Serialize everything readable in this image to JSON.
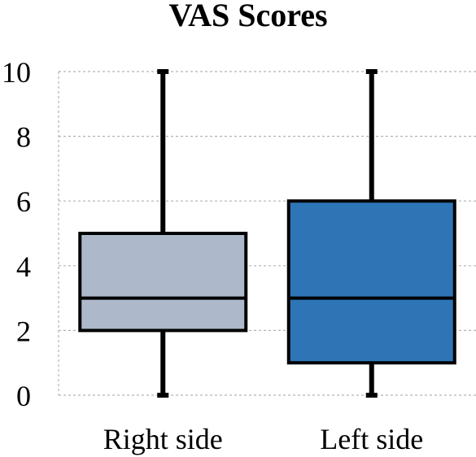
{
  "chart_data": {
    "type": "box",
    "title": "VAS Scores",
    "xlabel": "",
    "ylabel": "",
    "ylim": [
      0,
      10
    ],
    "yticks": [
      0,
      2,
      4,
      6,
      8,
      10
    ],
    "grid": true,
    "categories": [
      "Right side",
      "Left side"
    ],
    "boxes": [
      {
        "category": "Right side",
        "min": 0,
        "q1": 2,
        "median": 3,
        "q3": 5,
        "max": 10,
        "color": "#adb9ca"
      },
      {
        "category": "Left side",
        "min": 0,
        "q1": 1,
        "median": 3,
        "q3": 6,
        "max": 10,
        "color": "#2e75b6"
      }
    ]
  }
}
